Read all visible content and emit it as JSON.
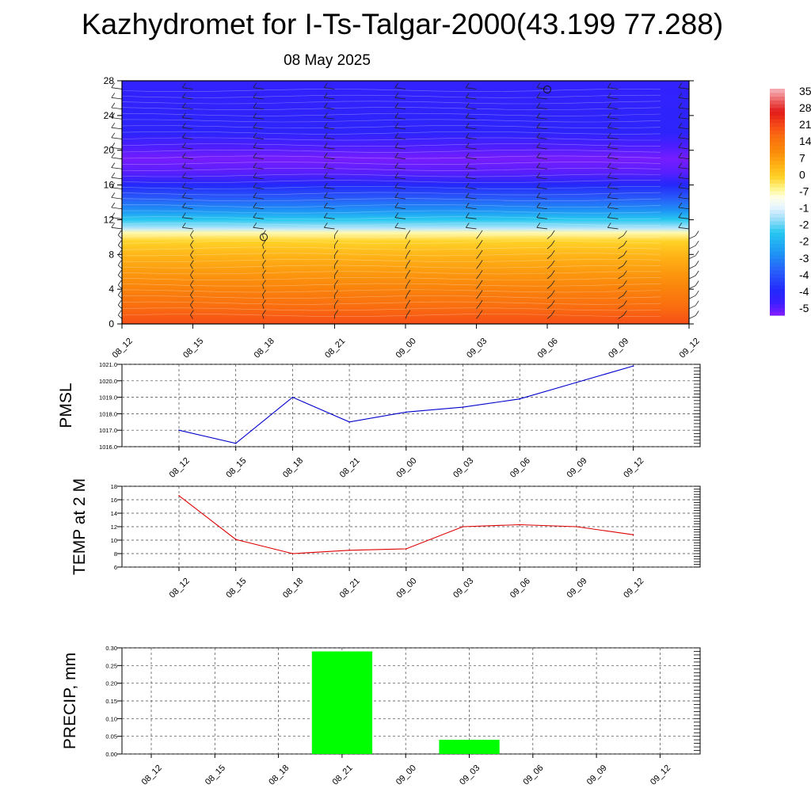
{
  "title": "Kazhydromet for I-Ts-Talgar-2000(43.199 77.288)",
  "subtitle": "08 May 2025",
  "chart_data": [
    {
      "type": "heatmap",
      "name": "vertical cross-section",
      "x_ticks": [
        "08_12",
        "08_15",
        "08_18",
        "08_21",
        "09_00",
        "09_03",
        "09_06",
        "09_09",
        "09_12"
      ],
      "y_ticks": [
        "0",
        "4",
        "8",
        "12",
        "16",
        "20",
        "24",
        "28"
      ],
      "ylim": [
        0,
        28
      ],
      "colorbar_labels": [
        "35",
        "28",
        "21",
        "14",
        "7",
        "0",
        "-7",
        "-1",
        "-2",
        "-2",
        "-3",
        "-4",
        "-4",
        "-5"
      ],
      "colorbar_range": [
        -55,
        35
      ],
      "profile": [
        {
          "z": 0,
          "v": 20
        },
        {
          "z": 2,
          "v": 16
        },
        {
          "z": 4,
          "v": 12
        },
        {
          "z": 6,
          "v": 8
        },
        {
          "z": 8,
          "v": 4
        },
        {
          "z": 9.5,
          "v": 0
        },
        {
          "z": 10.5,
          "v": -6
        },
        {
          "z": 11,
          "v": -15
        },
        {
          "z": 12,
          "v": -22
        },
        {
          "z": 13,
          "v": -30
        },
        {
          "z": 14.5,
          "v": -38
        },
        {
          "z": 16,
          "v": -45
        },
        {
          "z": 17.5,
          "v": -52
        },
        {
          "z": 19,
          "v": -54
        },
        {
          "z": 20.5,
          "v": -51
        },
        {
          "z": 22,
          "v": -47
        },
        {
          "z": 28,
          "v": -48
        }
      ],
      "markers": [
        {
          "x": "08_18",
          "z": 10
        },
        {
          "x": "09_06",
          "z": 27
        }
      ]
    },
    {
      "type": "line",
      "ylabel": "PMSL",
      "categories": [
        "08_12",
        "08_15",
        "08_18",
        "08_21",
        "09_00",
        "09_03",
        "09_06",
        "09_09",
        "09_12"
      ],
      "values": [
        1017.0,
        1016.2,
        1019.0,
        1017.5,
        1018.1,
        1018.4,
        1018.9,
        1019.9,
        1020.9
      ],
      "ylim": [
        1016.0,
        1021.0
      ],
      "y_ticks": [
        "1016.0",
        "1017.0",
        "1018.0",
        "1019.0",
        "1020.0",
        "1021.0"
      ],
      "color": "#0000cc"
    },
    {
      "type": "line",
      "ylabel": "TEMP at 2 M",
      "categories": [
        "08_12",
        "08_15",
        "08_18",
        "08_21",
        "09_00",
        "09_03",
        "09_06",
        "09_09",
        "09_12"
      ],
      "values": [
        16.6,
        10.1,
        8.0,
        8.5,
        8.7,
        12.0,
        12.3,
        12.0,
        10.8
      ],
      "ylim": [
        6,
        18
      ],
      "y_ticks": [
        "6",
        "8",
        "10",
        "12",
        "14",
        "16",
        "18"
      ],
      "color": "#dd0000"
    },
    {
      "type": "bar",
      "ylabel": "PRECIP, mm",
      "categories": [
        "08_12",
        "08_15",
        "08_18",
        "08_21",
        "09_00",
        "09_03",
        "09_06",
        "09_09",
        "09_12"
      ],
      "values": [
        0,
        0,
        0,
        0.29,
        0,
        0.04,
        0,
        0,
        0
      ],
      "ylim": [
        0,
        0.3
      ],
      "y_ticks": [
        "0.00",
        "0.05",
        "0.10",
        "0.15",
        "0.20",
        "0.25",
        "0.30"
      ],
      "color": "#00ff00"
    }
  ]
}
